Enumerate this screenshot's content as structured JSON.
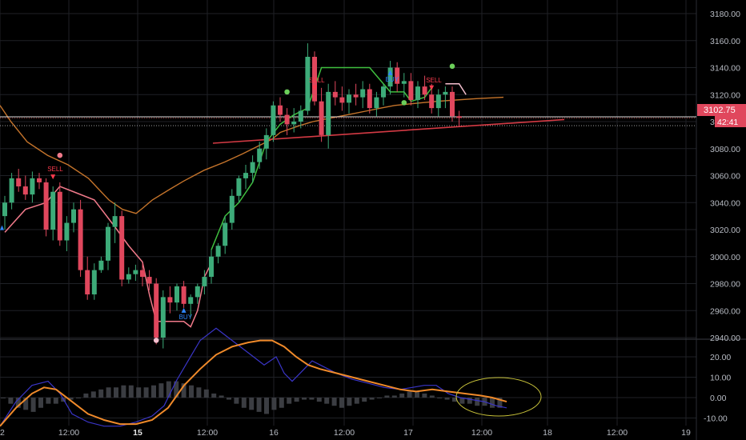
{
  "chart_data": {
    "type": "candlestick",
    "title": "",
    "price_panel": {
      "ylim": [
        2920,
        3190
      ],
      "yticks": [
        "3180.00",
        "3160.00",
        "3140.00",
        "3120.00",
        "3100.00",
        "3080.00",
        "3060.00",
        "3040.00",
        "3020.00",
        "3000.00",
        "2980.00",
        "2960.00",
        "2940.00"
      ],
      "ytick_values": [
        3180,
        3160,
        3140,
        3120,
        3100,
        3080,
        3060,
        3040,
        3020,
        3000,
        2980,
        2960,
        2940
      ],
      "last_price_label": "3102.75",
      "countdown_label": "42:41",
      "last_price": 3102.75,
      "reference_price": 3097,
      "ohlc": [
        [
          3030,
          3045,
          3020,
          3040
        ],
        [
          3040,
          3062,
          3035,
          3058
        ],
        [
          3058,
          3065,
          3048,
          3052
        ],
        [
          3052,
          3060,
          3042,
          3046
        ],
        [
          3046,
          3063,
          3040,
          3058
        ],
        [
          3058,
          3062,
          3050,
          3055
        ],
        [
          3055,
          3058,
          3015,
          3020
        ],
        [
          3020,
          3052,
          3012,
          3048
        ],
        [
          3048,
          3055,
          3008,
          3012
        ],
        [
          3012,
          3030,
          3004,
          3025
        ],
        [
          3025,
          3040,
          3018,
          3035
        ],
        [
          3035,
          3042,
          2985,
          2990
        ],
        [
          2990,
          3000,
          2968,
          2972
        ],
        [
          2972,
          2995,
          2968,
          2990
        ],
        [
          2990,
          3000,
          2988,
          2997
        ],
        [
          2997,
          3025,
          2990,
          3022
        ],
        [
          3022,
          3040,
          3010,
          3030
        ],
        [
          3030,
          3034,
          2978,
          2983
        ],
        [
          2983,
          2992,
          2980,
          2987
        ],
        [
          2987,
          2994,
          2982,
          2990
        ],
        [
          2990,
          2995,
          2978,
          2985
        ],
        [
          2985,
          2990,
          2975,
          2980
        ],
        [
          2980,
          2984,
          2935,
          2940
        ],
        [
          2940,
          2975,
          2932,
          2970
        ],
        [
          2970,
          2978,
          2958,
          2966
        ],
        [
          2966,
          2980,
          2960,
          2978
        ],
        [
          2978,
          2982,
          2962,
          2965
        ],
        [
          2965,
          2972,
          2955,
          2970
        ],
        [
          2970,
          2980,
          2965,
          2978
        ],
        [
          2978,
          2990,
          2972,
          2985
        ],
        [
          2985,
          3005,
          2980,
          3000
        ],
        [
          3000,
          3010,
          2995,
          3008
        ],
        [
          3008,
          3030,
          3002,
          3025
        ],
        [
          3025,
          3050,
          3020,
          3045
        ],
        [
          3045,
          3060,
          3040,
          3058
        ],
        [
          3058,
          3068,
          3050,
          3062
        ],
        [
          3062,
          3075,
          3055,
          3070
        ],
        [
          3070,
          3085,
          3065,
          3080
        ],
        [
          3080,
          3095,
          3072,
          3090
        ],
        [
          3090,
          3115,
          3085,
          3112
        ],
        [
          3112,
          3118,
          3100,
          3105
        ],
        [
          3105,
          3110,
          3090,
          3098
        ],
        [
          3098,
          3110,
          3092,
          3100
        ],
        [
          3100,
          3112,
          3095,
          3108
        ],
        [
          3108,
          3158,
          3105,
          3148
        ],
        [
          3148,
          3152,
          3112,
          3115
        ],
        [
          3115,
          3125,
          3085,
          3090
        ],
        [
          3090,
          3128,
          3080,
          3122
        ],
        [
          3122,
          3130,
          3112,
          3118
        ],
        [
          3118,
          3126,
          3108,
          3114
        ],
        [
          3114,
          3124,
          3106,
          3120
        ],
        [
          3120,
          3128,
          3112,
          3118
        ],
        [
          3118,
          3130,
          3110,
          3124
        ],
        [
          3124,
          3128,
          3106,
          3110
        ],
        [
          3110,
          3122,
          3104,
          3118
        ],
        [
          3118,
          3128,
          3112,
          3126
        ],
        [
          3126,
          3145,
          3120,
          3140
        ],
        [
          3140,
          3144,
          3122,
          3128
        ],
        [
          3128,
          3136,
          3118,
          3130
        ],
        [
          3130,
          3136,
          3112,
          3116
        ],
        [
          3116,
          3130,
          3110,
          3126
        ],
        [
          3126,
          3134,
          3116,
          3120
        ],
        [
          3120,
          3128,
          3106,
          3110
        ],
        [
          3110,
          3124,
          3104,
          3120
        ],
        [
          3120,
          3126,
          3110,
          3122
        ],
        [
          3122,
          3126,
          3100,
          3104
        ],
        [
          3104,
          3108,
          3096,
          3102.75
        ]
      ],
      "moving_average": [
        [
          0,
          3112
        ],
        [
          8,
          3100
        ],
        [
          20,
          3085
        ],
        [
          35,
          3075
        ],
        [
          50,
          3068
        ],
        [
          65,
          3058
        ],
        [
          80,
          3042
        ],
        [
          90,
          3035
        ],
        [
          100,
          3032
        ],
        [
          105,
          3036
        ],
        [
          112,
          3042
        ],
        [
          125,
          3050
        ],
        [
          135,
          3056
        ],
        [
          150,
          3064
        ],
        [
          165,
          3070
        ],
        [
          178,
          3076
        ],
        [
          190,
          3082
        ],
        [
          200,
          3087
        ],
        [
          206,
          3092
        ],
        [
          220,
          3097
        ],
        [
          230,
          3100
        ],
        [
          245,
          3103
        ],
        [
          260,
          3106
        ],
        [
          270,
          3108
        ],
        [
          280,
          3110
        ],
        [
          290,
          3112
        ],
        [
          300,
          3113
        ],
        [
          310,
          3114
        ],
        [
          321,
          3115
        ],
        [
          335,
          3116
        ],
        [
          350,
          3117
        ],
        [
          370,
          3118
        ]
      ],
      "trend_line": [
        [
          266,
          3084
        ],
        [
          705,
          3101.5
        ]
      ],
      "signals": [
        {
          "label": "SELL",
          "index": 7,
          "price": 3062,
          "color": "#ff3b4e"
        },
        {
          "label": "BUY",
          "index": 26,
          "price": 2962,
          "color": "#2f87ff"
        },
        {
          "label": "SELL",
          "index": 45,
          "price": 3128,
          "color": "#ff3b4e"
        },
        {
          "label": "BUY",
          "index": 56,
          "price": 3138,
          "color": "#2f87ff"
        },
        {
          "label": "SELL",
          "index": 62,
          "price": 3128,
          "color": "#ff3b4e"
        }
      ],
      "buy_edge_marker": {
        "label": "BUY",
        "price": 3022
      }
    },
    "indicator_panel": {
      "ylim": [
        -12,
        28
      ],
      "yticks": [
        "20.00",
        "10.00",
        "0.00",
        "-10.00"
      ],
      "ytick_values": [
        20,
        10,
        0,
        -10
      ],
      "macd_line": [
        [
          0,
          -14
        ],
        [
          20,
          -2
        ],
        [
          40,
          6
        ],
        [
          60,
          8
        ],
        [
          75,
          2
        ],
        [
          90,
          -8
        ],
        [
          110,
          -12
        ],
        [
          130,
          -14
        ],
        [
          150,
          -14
        ],
        [
          170,
          -12
        ],
        [
          190,
          -9
        ],
        [
          205,
          -4
        ],
        [
          220,
          8
        ],
        [
          235,
          18
        ],
        [
          250,
          28
        ],
        [
          270,
          34
        ],
        [
          290,
          28
        ],
        [
          310,
          22
        ],
        [
          330,
          16
        ],
        [
          345,
          20
        ],
        [
          355,
          12
        ],
        [
          365,
          8
        ],
        [
          375,
          12
        ],
        [
          390,
          18
        ],
        [
          400,
          16
        ],
        [
          420,
          12
        ],
        [
          440,
          9
        ],
        [
          460,
          7
        ],
        [
          480,
          5
        ],
        [
          500,
          4
        ],
        [
          515,
          5
        ],
        [
          530,
          6
        ],
        [
          545,
          6
        ],
        [
          560,
          2
        ],
        [
          575,
          0
        ],
        [
          590,
          -1
        ],
        [
          605,
          -2
        ],
        [
          620,
          -4
        ],
        [
          633,
          -5
        ]
      ],
      "signal_line": [
        [
          0,
          -14
        ],
        [
          20,
          -5
        ],
        [
          40,
          2
        ],
        [
          55,
          5
        ],
        [
          70,
          4
        ],
        [
          90,
          -2
        ],
        [
          110,
          -8
        ],
        [
          130,
          -11
        ],
        [
          150,
          -13
        ],
        [
          170,
          -13
        ],
        [
          190,
          -11
        ],
        [
          210,
          -5
        ],
        [
          230,
          6
        ],
        [
          250,
          14
        ],
        [
          270,
          21
        ],
        [
          290,
          25
        ],
        [
          310,
          27
        ],
        [
          325,
          28
        ],
        [
          340,
          28
        ],
        [
          355,
          25
        ],
        [
          370,
          20
        ],
        [
          385,
          16
        ],
        [
          400,
          14
        ],
        [
          420,
          12
        ],
        [
          440,
          10
        ],
        [
          460,
          8
        ],
        [
          480,
          6
        ],
        [
          500,
          4
        ],
        [
          520,
          3
        ],
        [
          540,
          4
        ],
        [
          560,
          3
        ],
        [
          580,
          2
        ],
        [
          600,
          1
        ],
        [
          615,
          0
        ],
        [
          633,
          -2
        ]
      ],
      "histogram": [
        0,
        -3,
        -5,
        -6,
        -7,
        -5,
        -3,
        -3,
        -2,
        -1,
        0,
        2,
        3,
        4,
        5,
        5,
        6,
        6,
        5,
        5,
        6,
        7,
        8,
        8,
        7,
        6,
        5,
        4,
        2,
        1,
        -1,
        -3,
        -5,
        -6,
        -7,
        -8,
        -6,
        -5,
        -3,
        -2,
        -1,
        -1,
        -2,
        -3,
        -4,
        -5,
        -4,
        -3,
        -2,
        -1,
        0,
        1,
        1,
        2,
        3,
        3,
        2,
        1,
        0,
        -1,
        -2,
        -3,
        -3,
        -4,
        -4,
        -5,
        -5
      ]
    },
    "x_axis": {
      "tick_labels": [
        "2",
        "12:00",
        "15",
        "12:00",
        "16",
        "12:00",
        "17",
        "12:00",
        "18",
        "12:00",
        "19"
      ],
      "bold_labels": [
        "15"
      ]
    }
  }
}
